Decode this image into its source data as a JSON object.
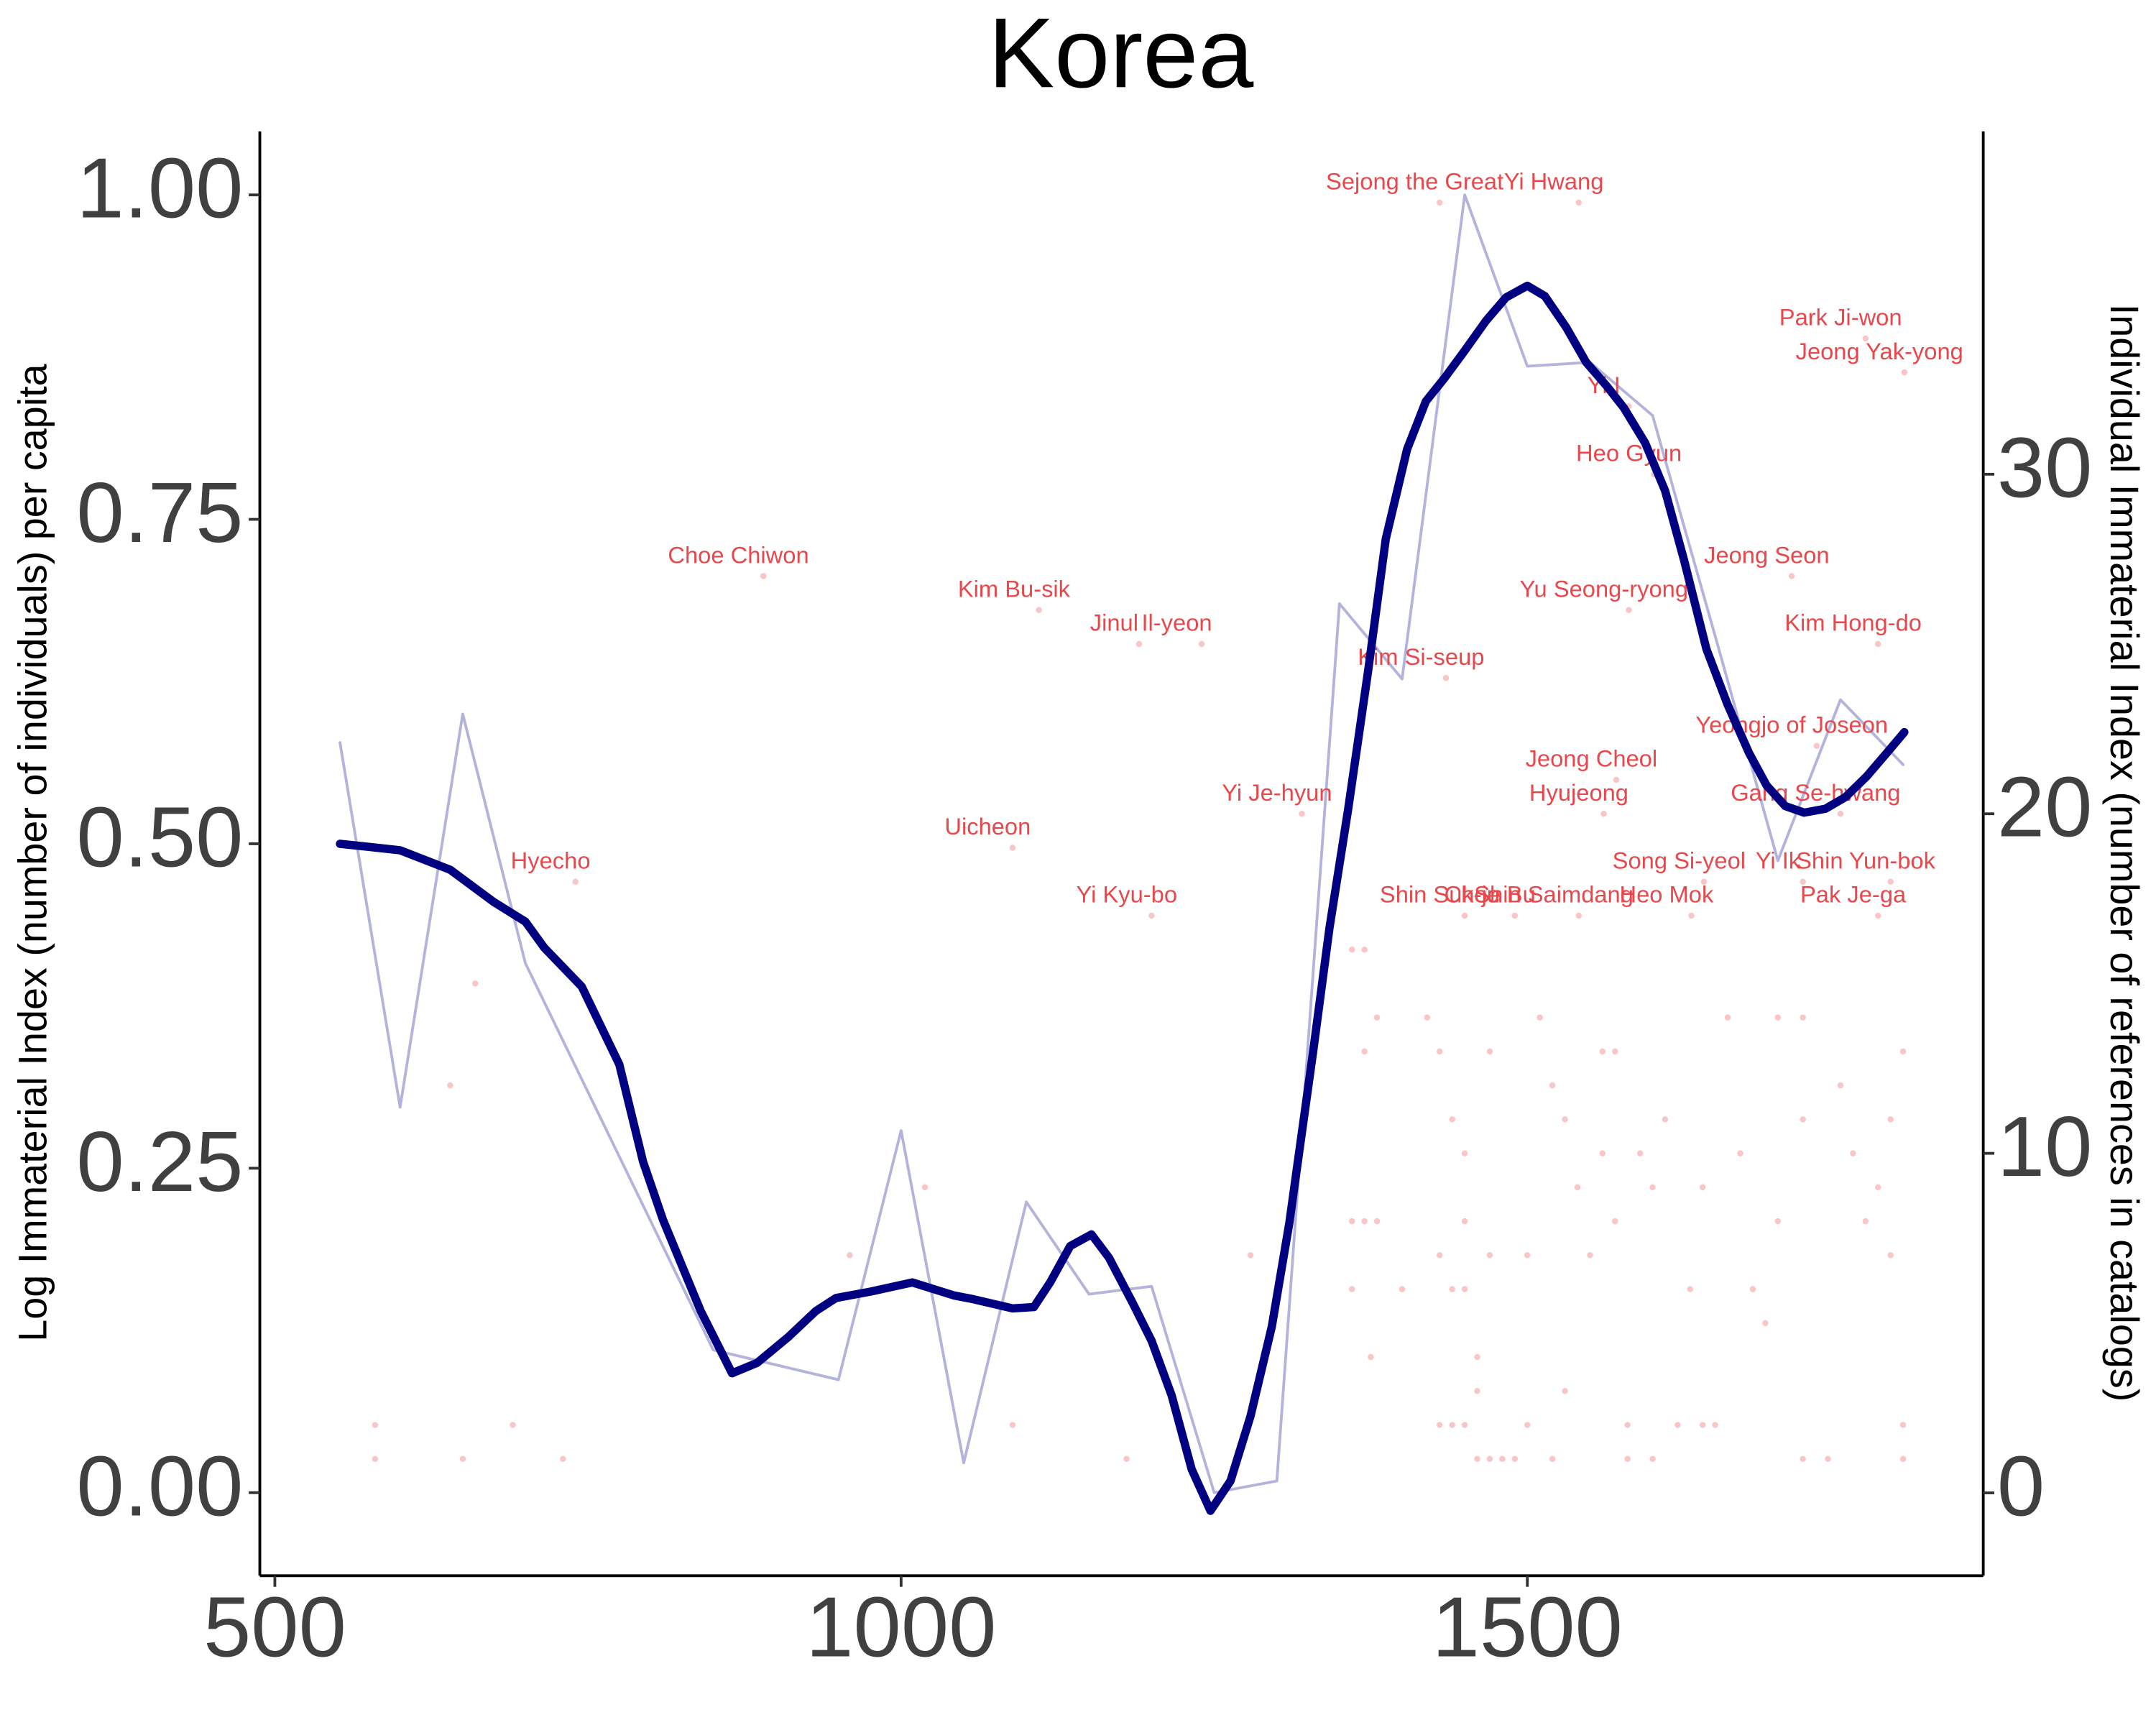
{
  "chart_data": {
    "type": "line",
    "title": "Korea",
    "ylabel": "Log Immaterial Index (number of individuals) per capita",
    "y2label": "Individual Immaterial Index (number of references in catalogs)",
    "xlim": [
      488,
      1864
    ],
    "xticks": [
      500,
      1000,
      1500
    ],
    "ylim": [
      -0.064,
      1.049
    ],
    "yticks": [
      {
        "value": 0,
        "label": "0.00"
      },
      0.25,
      {
        "value": 0.5,
        "label": "0.50"
      },
      0.75,
      {
        "value": 1,
        "label": "1.00"
      }
    ],
    "y2lim": [
      -2.44,
      40.1
    ],
    "y2ticks": [
      0,
      10,
      20,
      30
    ],
    "grid": false,
    "series": [
      {
        "kind": "line",
        "color": "#b3b3dc",
        "width": 2,
        "x": [
          552,
          600,
          650,
          700,
          850,
          950,
          1000,
          1050,
          1100,
          1150,
          1200,
          1250,
          1300,
          1350,
          1400,
          1450,
          1500,
          1550,
          1600,
          1650,
          1700,
          1750,
          1800
        ],
        "values": [
          0.578,
          0.297,
          0.6,
          0.408,
          0.11,
          0.087,
          0.279,
          0.023,
          0.224,
          0.153,
          0.159,
          0.0,
          0.009,
          0.685,
          0.627,
          1.0,
          0.868,
          0.871,
          0.83,
          0.66,
          0.487,
          0.611,
          0.561
        ]
      },
      {
        "kind": "line",
        "color": "#000080",
        "width": 6,
        "x": [
          552,
          600,
          640,
          675,
          700,
          715,
          745,
          775,
          794,
          810,
          825,
          840,
          865,
          885,
          910,
          932,
          948,
          976,
          1009,
          1042,
          1058,
          1089,
          1106,
          1119,
          1135,
          1152,
          1166,
          1185,
          1200,
          1216,
          1232,
          1247,
          1263,
          1279,
          1296,
          1310,
          1329,
          1342,
          1357,
          1373,
          1387,
          1404,
          1419,
          1434,
          1450,
          1467,
          1483,
          1500,
          1514,
          1531,
          1547,
          1564,
          1577,
          1594,
          1610,
          1625,
          1643,
          1660,
          1677,
          1691,
          1706,
          1721,
          1738,
          1754,
          1771,
          1787,
          1801
        ],
        "values": [
          0.5,
          0.495,
          0.48,
          0.455,
          0.44,
          0.42,
          0.39,
          0.33,
          0.255,
          0.21,
          0.175,
          0.14,
          0.092,
          0.1,
          0.12,
          0.14,
          0.15,
          0.155,
          0.162,
          0.152,
          0.149,
          0.142,
          0.143,
          0.162,
          0.19,
          0.199,
          0.181,
          0.146,
          0.117,
          0.075,
          0.018,
          -0.014,
          0.009,
          0.059,
          0.128,
          0.208,
          0.34,
          0.435,
          0.527,
          0.634,
          0.735,
          0.804,
          0.841,
          0.859,
          0.88,
          0.903,
          0.921,
          0.93,
          0.922,
          0.898,
          0.871,
          0.852,
          0.836,
          0.809,
          0.772,
          0.719,
          0.65,
          0.607,
          0.57,
          0.545,
          0.529,
          0.524,
          0.527,
          0.536,
          0.552,
          0.57,
          0.586
        ]
      },
      {
        "kind": "scatter",
        "axis": "y2",
        "color": "#f08080",
        "x": [
          1430,
          1541,
          1770,
          1801,
          1581,
          1601,
          1711,
          1780,
          1581,
          1435,
          890,
          1110,
          1190,
          1240,
          1731,
          1571,
          1320,
          1750,
          1561,
          740,
          1089,
          1641,
          1790,
          1720,
          1450,
          1490,
          1541,
          1631,
          1780,
          1200,
          580,
          580,
          650,
          660,
          640,
          690,
          730,
          1019,
          959,
          1089,
          1180,
          1279,
          1360,
          1370,
          1380,
          1370,
          1360,
          1370,
          1380,
          1360,
          1375,
          1400,
          1420,
          1430,
          1440,
          1430,
          1440,
          1430,
          1440,
          1450,
          1460,
          1470,
          1450,
          1450,
          1450,
          1460,
          1460,
          1470,
          1470,
          1480,
          1490,
          1500,
          1500,
          1510,
          1520,
          1520,
          1530,
          1530,
          1540,
          1550,
          1560,
          1560,
          1570,
          1570,
          1580,
          1580,
          1590,
          1600,
          1600,
          1610,
          1620,
          1630,
          1640,
          1640,
          1650,
          1660,
          1670,
          1680,
          1690,
          1700,
          1700,
          1720,
          1720,
          1720,
          1740,
          1750,
          1760,
          1770,
          1780,
          1790,
          1790,
          1800,
          1800,
          1800
        ],
        "values": [
          38,
          38,
          34,
          33,
          32,
          30,
          27,
          25,
          26,
          24,
          27,
          26,
          25,
          25,
          22,
          21,
          20,
          20,
          20,
          18,
          19,
          18,
          18,
          18,
          17,
          17,
          17,
          17,
          17,
          17,
          2,
          1,
          1,
          15,
          12,
          2,
          1,
          9,
          7,
          2,
          1,
          7,
          16,
          16,
          14,
          13,
          8,
          8,
          8,
          6,
          4,
          6,
          14,
          13,
          11,
          7,
          6,
          2,
          2,
          2,
          1,
          1,
          10,
          8,
          6,
          4,
          3,
          13,
          7,
          1,
          1,
          2,
          7,
          14,
          12,
          1,
          11,
          3,
          9,
          7,
          13,
          10,
          8,
          13,
          1,
          2,
          10,
          9,
          1,
          11,
          2,
          6,
          2,
          9,
          2,
          14,
          10,
          6,
          5,
          14,
          8,
          14,
          11,
          1,
          1,
          12,
          10,
          8,
          9,
          11,
          7,
          13,
          1,
          2
        ],
        "labels": [
          "Sejong the Great",
          "Yi Hwang",
          "Park Ji-won",
          "Jeong Yak-yong",
          "Yi I",
          "Heo Gyun",
          "Jeong Seon",
          "Kim Hong-do",
          "Yu Seong-ryong",
          "Kim Si-seup",
          "Choe Chiwon",
          "Kim Bu-sik",
          "Jinul",
          "Il-yeon",
          "Yeongjo of Joseon",
          "Jeong Cheol",
          "Yi Je-hyun",
          "Gang Se-hwang",
          "Hyujeong",
          "Hyecho",
          "Uicheon",
          "Song Si-yeol",
          "Shin Yun-bok",
          "Yi Ik",
          "Shin Suk-ju",
          "Choe Bu",
          "Shin Saimdang",
          "Heo Mok",
          "Pak Je-ga",
          "Yi Kyu-bo",
          null,
          null,
          null,
          null,
          null,
          null,
          null,
          null,
          null,
          null,
          null,
          null,
          null,
          null,
          null,
          null,
          null,
          null,
          null,
          null,
          null,
          null,
          null,
          null,
          null,
          null,
          null,
          null,
          null,
          null,
          null,
          null,
          null,
          null,
          null,
          null,
          null,
          null,
          null,
          null,
          null,
          null,
          null,
          null,
          null,
          null,
          null,
          null,
          null,
          null,
          null,
          null,
          null,
          null,
          null,
          null,
          null,
          null,
          null,
          null,
          null,
          null,
          null,
          null,
          null,
          null,
          null,
          null,
          null,
          null,
          null,
          null,
          null,
          null,
          null,
          null,
          null,
          null,
          null,
          null,
          null,
          null,
          null,
          null
        ]
      }
    ]
  }
}
